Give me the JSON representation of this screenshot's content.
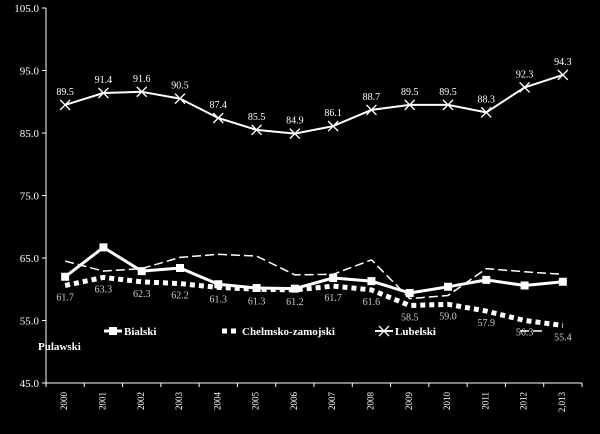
{
  "chart_data": {
    "type": "line",
    "title": "",
    "xlabel": "",
    "ylabel": "",
    "ylim": [
      45.0,
      105.0
    ],
    "yticks": [
      "45.0",
      "55.0",
      "65.0",
      "75.0",
      "85.0",
      "95.0",
      "105.0"
    ],
    "categories": [
      "2000",
      "2001",
      "2002",
      "2003",
      "2004",
      "2005",
      "2006",
      "2007",
      "2008",
      "2009",
      "2010",
      "2011",
      "2012",
      "2,013"
    ],
    "grid": false,
    "legend_position": "inside-lower",
    "series": [
      {
        "name": "Bialski",
        "style": "solid-square",
        "color": "#ffffff",
        "values": [
          62.0,
          66.7,
          62.9,
          63.4,
          60.8,
          60.2,
          60.1,
          61.8,
          61.3,
          59.4,
          60.4,
          61.5,
          60.6,
          61.2
        ]
      },
      {
        "name": "Chelmsko-zamojski",
        "style": "dotted-thick",
        "color": "#ffffff",
        "values": [
          60.6,
          61.9,
          61.2,
          60.9,
          60.3,
          60.0,
          59.9,
          60.5,
          59.9,
          57.4,
          57.6,
          56.5,
          55.0,
          54.2
        ]
      },
      {
        "name": "Lubelski",
        "style": "solid-x",
        "color": "#ffffff",
        "values": [
          89.5,
          91.4,
          91.6,
          90.5,
          87.4,
          85.5,
          84.9,
          86.1,
          88.7,
          89.5,
          89.5,
          88.3,
          92.3,
          94.3
        ]
      },
      {
        "name": "Pulawski",
        "style": "dashed",
        "color": "#ffffff",
        "values": [
          64.5,
          62.9,
          63.3,
          65.1,
          65.6,
          65.3,
          62.3,
          62.4,
          64.7,
          58.5,
          59.0,
          63.3,
          62.8,
          62.4
        ]
      }
    ],
    "data_labels": {
      "Lubelski": [
        "89.5",
        "91.4",
        "91.6",
        "90.5",
        "87.4",
        "85.5",
        "84.9",
        "86.1",
        "88.7",
        "89.5",
        "89.5",
        "88.3",
        "92.3",
        "94.3"
      ],
      "Lower": [
        "61.7",
        "63.3",
        "62.3",
        "62.2",
        "61.3",
        "61.3",
        "61.2",
        "61.7",
        "61.6",
        "58.5",
        "59.0",
        "57.9",
        "56.3",
        "55.4"
      ]
    }
  }
}
